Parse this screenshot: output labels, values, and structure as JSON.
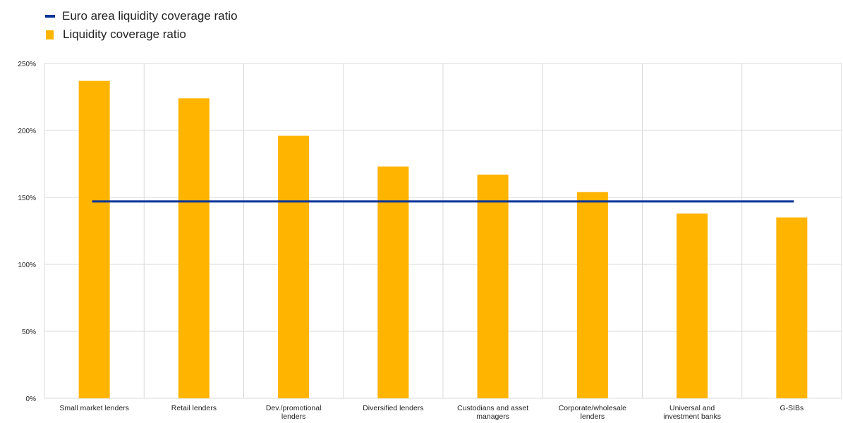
{
  "colors": {
    "bar": "#FFB400",
    "line": "#003299",
    "grid": "#D9D9D9",
    "text": "#222222"
  },
  "legend": {
    "placement": "top-left",
    "line_label": "Euro area liquidity coverage ratio",
    "bar_label": "Liquidity coverage ratio"
  },
  "chart_data": {
    "type": "bar",
    "categories": [
      "Small market lenders",
      "Retail lenders",
      "Dev./promotional lenders",
      "Diversified lenders",
      "Custodians and asset managers",
      "Corporate/wholesale lenders",
      "Universal and investment banks",
      "G-SIBs"
    ],
    "category_lines": [
      [
        "Small market lenders"
      ],
      [
        "Retail lenders"
      ],
      [
        "Dev./promotional",
        "lenders"
      ],
      [
        "Diversified lenders"
      ],
      [
        "Custodians and asset",
        "managers"
      ],
      [
        "Corporate/wholesale",
        "lenders"
      ],
      [
        "Universal and",
        "investment banks"
      ],
      [
        "G-SIBs"
      ]
    ],
    "series": [
      {
        "name": "Liquidity coverage ratio",
        "kind": "bar",
        "values": [
          237,
          224,
          196,
          173,
          167,
          154,
          138,
          135
        ]
      },
      {
        "name": "Euro area liquidity coverage ratio",
        "kind": "line",
        "values": [
          147,
          147,
          147,
          147,
          147,
          147,
          147,
          147
        ]
      }
    ],
    "ylim": [
      0,
      250
    ],
    "yticks": [
      0,
      50,
      100,
      150,
      200,
      250
    ],
    "ytick_labels": [
      "0%",
      "50%",
      "100%",
      "150%",
      "200%",
      "250%"
    ],
    "grid": true,
    "xlabel": "",
    "ylabel": ""
  }
}
